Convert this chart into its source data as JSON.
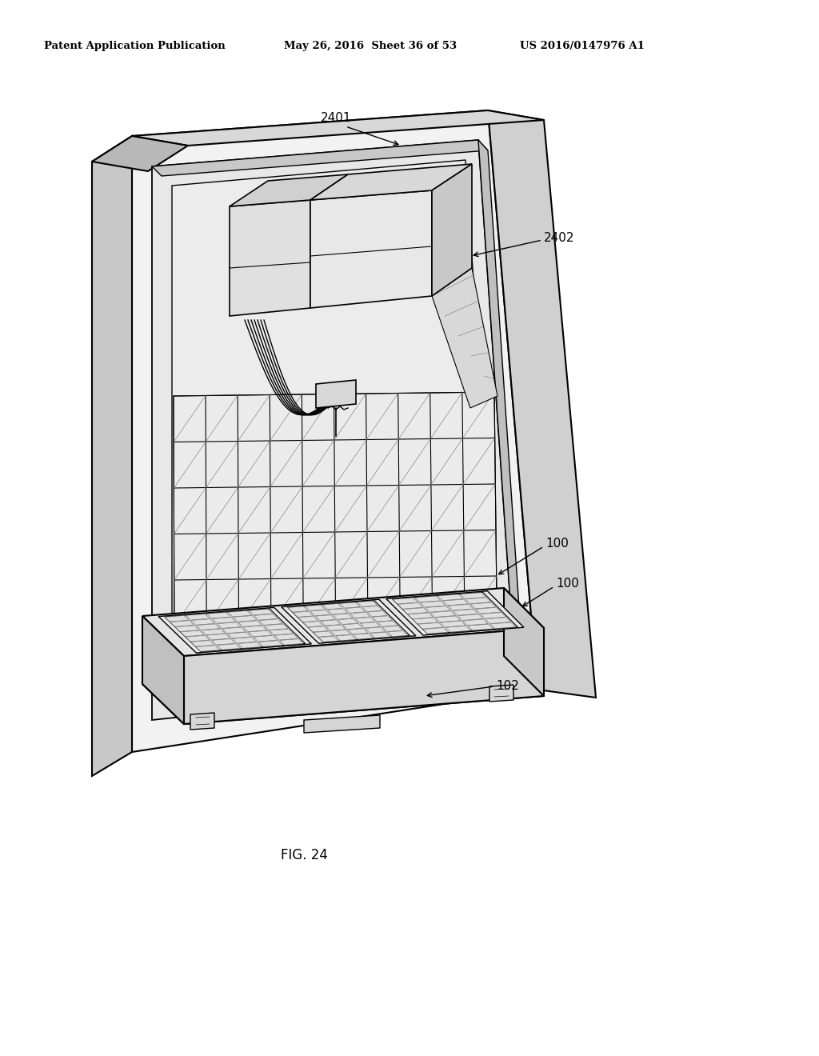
{
  "title_left": "Patent Application Publication",
  "title_mid": "May 26, 2016  Sheet 36 of 53",
  "title_right": "US 2016/0147976 A1",
  "fig_label": "FIG. 24",
  "label_2401": "2401",
  "label_2402": "2402",
  "label_100a": "100",
  "label_100b": "100",
  "label_102": "102",
  "bg_color": "#ffffff",
  "lc": "#000000",
  "c_light": "#f0f0f0",
  "c_mid": "#d8d8d8",
  "c_dark": "#b8b8b8",
  "c_darker": "#999999"
}
